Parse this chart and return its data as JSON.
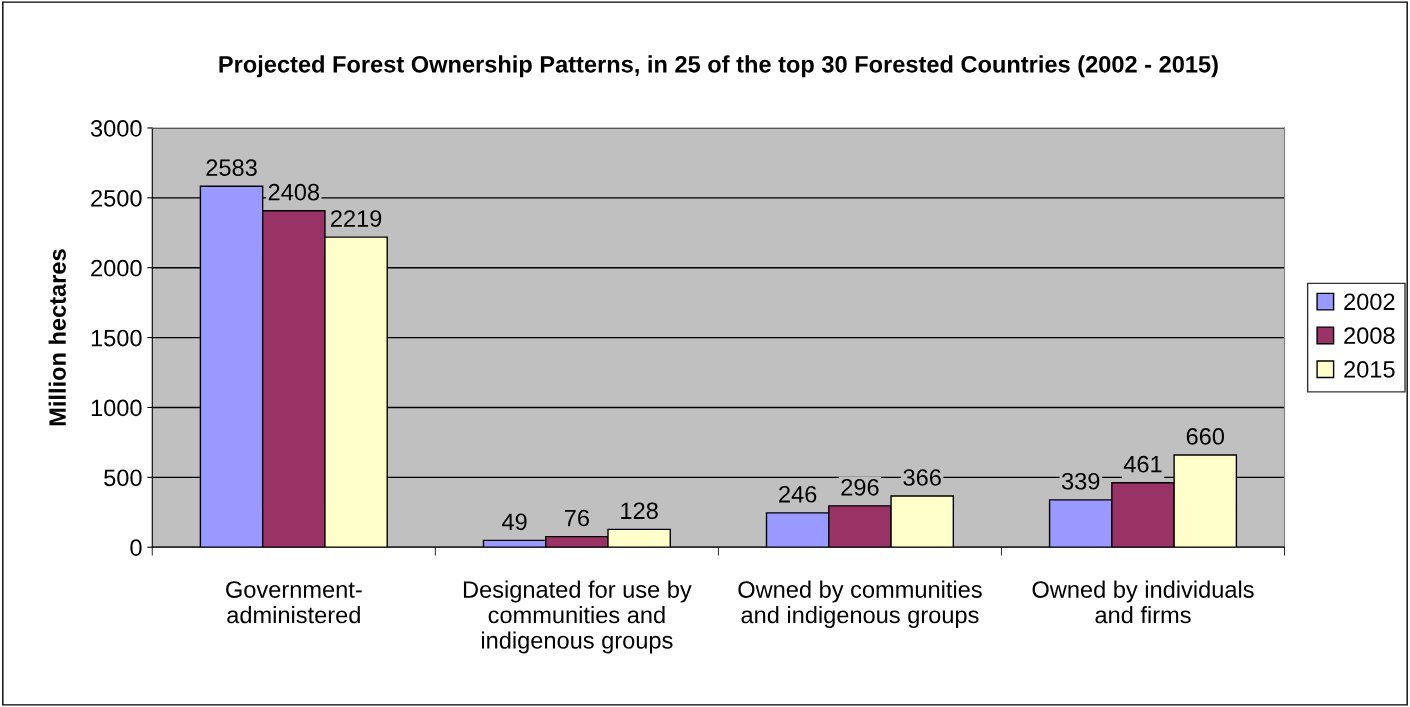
{
  "chart_data": {
    "type": "bar",
    "title": "Projected Forest Ownership Patterns, in 25 of the top 30 Forested Countries (2002 - 2015)",
    "ylabel": "Million hectares",
    "categories": [
      "Government-\nadministered",
      "Designated for use by\ncommunities and\nindigenous groups",
      "Owned by communities\nand indigenous groups",
      "Owned by individuals\nand firms"
    ],
    "series": [
      {
        "name": "2002",
        "color": "#9999ff",
        "values": [
          2583,
          49,
          246,
          339
        ]
      },
      {
        "name": "2008",
        "color": "#993366",
        "values": [
          2408,
          76,
          296,
          461
        ]
      },
      {
        "name": "2015",
        "color": "#ffffcc",
        "values": [
          2219,
          128,
          366,
          660
        ]
      }
    ],
    "ylim": [
      0,
      3000
    ],
    "yticks": [
      0,
      500,
      1000,
      1500,
      2000,
      2500,
      3000
    ],
    "grid": "y",
    "legend": "right",
    "data_labels": true
  }
}
